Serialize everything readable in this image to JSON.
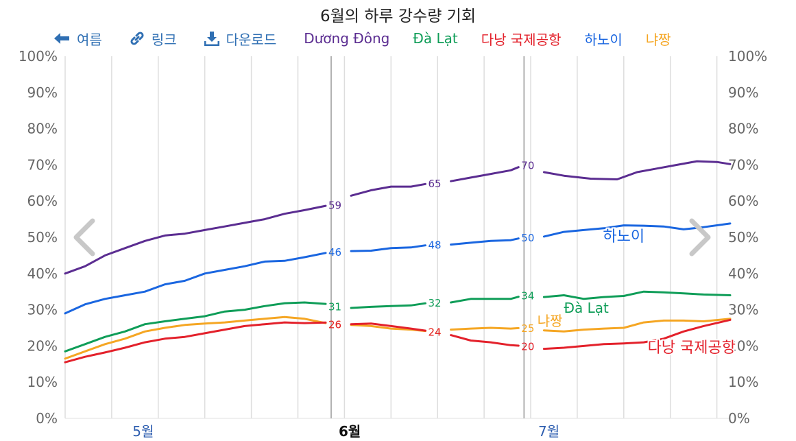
{
  "title": "6월의 하루 강수량 기회",
  "toolbar": {
    "back_label": "여름",
    "link_label": "링크",
    "download_label": "다운로드"
  },
  "colors": {
    "Dương Đông": "#5b2d91",
    "Đà Lạt": "#0f9d58",
    "다낭 국제공항": "#e3212b",
    "하노이": "#1a66e0",
    "냐짱": "#f5a623",
    "toolbar": "#2f6fb3"
  },
  "chart_data": {
    "type": "line",
    "title": "6월의 하루 강수량 기회",
    "x_unit": "day",
    "x_domain": [
      "2024-04-22",
      "2024-07-31"
    ],
    "month_labels": [
      {
        "label": "5월",
        "date": "2024-05-01",
        "bold": false
      },
      {
        "label": "6월",
        "date": "2024-06-01",
        "bold": true
      },
      {
        "label": "7월",
        "date": "2024-07-01",
        "bold": false
      }
    ],
    "highlight_range": [
      "2024-06-01",
      "2024-06-30"
    ],
    "ylim": [
      0,
      100
    ],
    "y_ticks": [
      "0%",
      "10%",
      "20%",
      "30%",
      "40%",
      "50%",
      "60%",
      "70%",
      "80%",
      "90%",
      "100%"
    ],
    "grid": true,
    "legend_position": "top",
    "series": [
      {
        "name": "Dương Đông",
        "color": "#5b2d91",
        "points": [
          [
            "2024-04-22",
            40
          ],
          [
            "2024-04-25",
            42
          ],
          [
            "2024-04-28",
            45
          ],
          [
            "2024-05-01",
            47
          ],
          [
            "2024-05-04",
            49
          ],
          [
            "2024-05-07",
            50.5
          ],
          [
            "2024-05-10",
            51
          ],
          [
            "2024-05-13",
            52
          ],
          [
            "2024-05-16",
            53
          ],
          [
            "2024-05-19",
            54
          ],
          [
            "2024-05-22",
            55
          ],
          [
            "2024-05-25",
            56.5
          ],
          [
            "2024-05-28",
            57.5
          ],
          [
            "2024-06-01",
            59
          ],
          [
            "2024-06-04",
            61.5
          ],
          [
            "2024-06-07",
            63
          ],
          [
            "2024-06-10",
            64
          ],
          [
            "2024-06-13",
            64
          ],
          [
            "2024-06-16",
            65
          ],
          [
            "2024-06-19",
            65.5
          ],
          [
            "2024-06-22",
            66.5
          ],
          [
            "2024-06-25",
            67.5
          ],
          [
            "2024-06-28",
            68.5
          ],
          [
            "2024-06-30",
            70
          ],
          [
            "2024-07-03",
            68
          ],
          [
            "2024-07-06",
            67
          ],
          [
            "2024-07-10",
            66.2
          ],
          [
            "2024-07-14",
            66
          ],
          [
            "2024-07-17",
            68
          ],
          [
            "2024-07-20",
            69
          ],
          [
            "2024-07-23",
            70
          ],
          [
            "2024-07-26",
            71
          ],
          [
            "2024-07-29",
            70.8
          ],
          [
            "2024-07-31",
            70.2
          ]
        ],
        "labels": [
          {
            "date": "2024-06-01",
            "value": 59,
            "text": "59"
          },
          {
            "date": "2024-06-16",
            "value": 65,
            "text": "65"
          },
          {
            "date": "2024-06-30",
            "value": 70,
            "text": "70"
          }
        ]
      },
      {
        "name": "하노이",
        "color": "#1a66e0",
        "points": [
          [
            "2024-04-22",
            29
          ],
          [
            "2024-04-25",
            31.5
          ],
          [
            "2024-04-28",
            33
          ],
          [
            "2024-05-01",
            34
          ],
          [
            "2024-05-04",
            35
          ],
          [
            "2024-05-07",
            37
          ],
          [
            "2024-05-10",
            38
          ],
          [
            "2024-05-13",
            40
          ],
          [
            "2024-05-16",
            41
          ],
          [
            "2024-05-19",
            42
          ],
          [
            "2024-05-22",
            43.3
          ],
          [
            "2024-05-25",
            43.5
          ],
          [
            "2024-05-28",
            44.5
          ],
          [
            "2024-06-01",
            46
          ],
          [
            "2024-06-04",
            46.2
          ],
          [
            "2024-06-07",
            46.3
          ],
          [
            "2024-06-10",
            47
          ],
          [
            "2024-06-13",
            47.2
          ],
          [
            "2024-06-16",
            48
          ],
          [
            "2024-06-19",
            48
          ],
          [
            "2024-06-22",
            48.5
          ],
          [
            "2024-06-25",
            49
          ],
          [
            "2024-06-28",
            49.2
          ],
          [
            "2024-06-30",
            50
          ],
          [
            "2024-07-03",
            50.2
          ],
          [
            "2024-07-06",
            51.5
          ],
          [
            "2024-07-09",
            52
          ],
          [
            "2024-07-12",
            52.5
          ],
          [
            "2024-07-15",
            53.3
          ],
          [
            "2024-07-18",
            53.2
          ],
          [
            "2024-07-21",
            53
          ],
          [
            "2024-07-24",
            52.2
          ],
          [
            "2024-07-27",
            52.8
          ],
          [
            "2024-07-31",
            53.8
          ]
        ],
        "labels": [
          {
            "date": "2024-06-01",
            "value": 46,
            "text": "46"
          },
          {
            "date": "2024-06-16",
            "value": 48,
            "text": "48"
          },
          {
            "date": "2024-06-30",
            "value": 50,
            "text": "50"
          }
        ]
      },
      {
        "name": "Đà Lạt",
        "color": "#0f9d58",
        "points": [
          [
            "2024-04-22",
            18.5
          ],
          [
            "2024-04-25",
            20.5
          ],
          [
            "2024-04-28",
            22.5
          ],
          [
            "2024-05-01",
            24
          ],
          [
            "2024-05-04",
            26
          ],
          [
            "2024-05-07",
            26.8
          ],
          [
            "2024-05-10",
            27.5
          ],
          [
            "2024-05-13",
            28.2
          ],
          [
            "2024-05-16",
            29.5
          ],
          [
            "2024-05-19",
            30
          ],
          [
            "2024-05-22",
            31
          ],
          [
            "2024-05-25",
            31.8
          ],
          [
            "2024-05-28",
            32
          ],
          [
            "2024-06-01",
            31.5
          ],
          [
            "2024-06-04",
            30.5
          ],
          [
            "2024-06-07",
            30.8
          ],
          [
            "2024-06-10",
            31
          ],
          [
            "2024-06-13",
            31.2
          ],
          [
            "2024-06-16",
            32
          ],
          [
            "2024-06-19",
            32
          ],
          [
            "2024-06-22",
            33
          ],
          [
            "2024-06-25",
            33
          ],
          [
            "2024-06-28",
            33
          ],
          [
            "2024-06-30",
            34
          ],
          [
            "2024-07-03",
            33.5
          ],
          [
            "2024-07-06",
            34
          ],
          [
            "2024-07-09",
            33
          ],
          [
            "2024-07-12",
            33.5
          ],
          [
            "2024-07-15",
            33.8
          ],
          [
            "2024-07-18",
            35
          ],
          [
            "2024-07-21",
            34.8
          ],
          [
            "2024-07-24",
            34.5
          ],
          [
            "2024-07-27",
            34.2
          ],
          [
            "2024-07-31",
            34
          ]
        ],
        "labels": [
          {
            "date": "2024-06-01",
            "value": 31,
            "text": "31"
          },
          {
            "date": "2024-06-16",
            "value": 32,
            "text": "32"
          },
          {
            "date": "2024-06-30",
            "value": 34,
            "text": "34"
          }
        ]
      },
      {
        "name": "냐짱",
        "color": "#f5a623",
        "points": [
          [
            "2024-04-22",
            16.5
          ],
          [
            "2024-04-25",
            18.5
          ],
          [
            "2024-04-28",
            20.5
          ],
          [
            "2024-05-01",
            22
          ],
          [
            "2024-05-04",
            24
          ],
          [
            "2024-05-07",
            25
          ],
          [
            "2024-05-10",
            25.8
          ],
          [
            "2024-05-13",
            26.2
          ],
          [
            "2024-05-16",
            26.5
          ],
          [
            "2024-05-19",
            27
          ],
          [
            "2024-05-22",
            27.5
          ],
          [
            "2024-05-25",
            28
          ],
          [
            "2024-05-28",
            27.5
          ],
          [
            "2024-06-01",
            26
          ],
          [
            "2024-06-04",
            25.8
          ],
          [
            "2024-06-07",
            25.5
          ],
          [
            "2024-06-10",
            24.8
          ],
          [
            "2024-06-13",
            24.5
          ],
          [
            "2024-06-16",
            24
          ],
          [
            "2024-06-19",
            24.5
          ],
          [
            "2024-06-22",
            24.8
          ],
          [
            "2024-06-25",
            25
          ],
          [
            "2024-06-28",
            24.8
          ],
          [
            "2024-06-30",
            25
          ],
          [
            "2024-07-03",
            24.3
          ],
          [
            "2024-07-06",
            24
          ],
          [
            "2024-07-09",
            24.5
          ],
          [
            "2024-07-12",
            24.8
          ],
          [
            "2024-07-15",
            25
          ],
          [
            "2024-07-18",
            26.5
          ],
          [
            "2024-07-21",
            27
          ],
          [
            "2024-07-24",
            27
          ],
          [
            "2024-07-27",
            26.8
          ],
          [
            "2024-07-31",
            27.5
          ]
        ],
        "labels": [
          {
            "date": "2024-06-01",
            "value": 26,
            "text": "26"
          },
          {
            "date": "2024-06-16",
            "value": 24,
            "text": "24"
          },
          {
            "date": "2024-06-30",
            "value": 25,
            "text": "25"
          }
        ]
      },
      {
        "name": "다낭 국제공항",
        "color": "#e3212b",
        "points": [
          [
            "2024-04-22",
            15.5
          ],
          [
            "2024-04-25",
            17
          ],
          [
            "2024-04-28",
            18.2
          ],
          [
            "2024-05-01",
            19.5
          ],
          [
            "2024-05-04",
            21
          ],
          [
            "2024-05-07",
            22
          ],
          [
            "2024-05-10",
            22.5
          ],
          [
            "2024-05-13",
            23.5
          ],
          [
            "2024-05-16",
            24.5
          ],
          [
            "2024-05-19",
            25.5
          ],
          [
            "2024-05-22",
            26
          ],
          [
            "2024-05-25",
            26.5
          ],
          [
            "2024-05-28",
            26.3
          ],
          [
            "2024-06-01",
            26.5
          ],
          [
            "2024-06-04",
            26
          ],
          [
            "2024-06-07",
            26.2
          ],
          [
            "2024-06-10",
            25.5
          ],
          [
            "2024-06-13",
            24.8
          ],
          [
            "2024-06-16",
            24
          ],
          [
            "2024-06-19",
            23
          ],
          [
            "2024-06-22",
            21.5
          ],
          [
            "2024-06-25",
            21
          ],
          [
            "2024-06-28",
            20.2
          ],
          [
            "2024-06-30",
            20
          ],
          [
            "2024-07-03",
            19.2
          ],
          [
            "2024-07-06",
            19.5
          ],
          [
            "2024-07-09",
            20
          ],
          [
            "2024-07-12",
            20.5
          ],
          [
            "2024-07-15",
            20.7
          ],
          [
            "2024-07-18",
            21
          ],
          [
            "2024-07-21",
            22
          ],
          [
            "2024-07-24",
            24
          ],
          [
            "2024-07-27",
            25.5
          ],
          [
            "2024-07-31",
            27.2
          ]
        ],
        "labels": [
          {
            "date": "2024-06-01",
            "value": 26,
            "text": "26"
          },
          {
            "date": "2024-06-16",
            "value": 24,
            "text": "24"
          },
          {
            "date": "2024-06-30",
            "value": 20,
            "text": "20"
          }
        ]
      }
    ],
    "series_annotations": [
      {
        "text": "하노이",
        "series": "하노이"
      },
      {
        "text": "Đà Lạt",
        "series": "Đà Lạt"
      },
      {
        "text": "냐짱",
        "series": "냐짱"
      },
      {
        "text": "다낭 국제공항",
        "series": "다낭 국제공항"
      }
    ]
  }
}
